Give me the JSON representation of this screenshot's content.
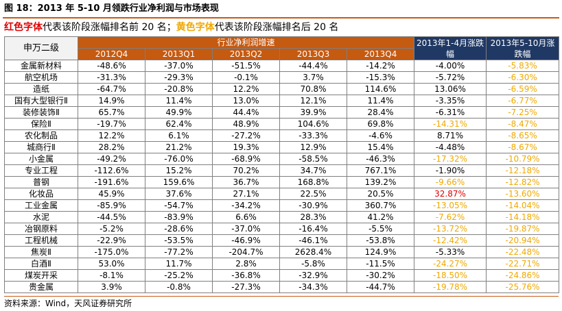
{
  "title": "图 18：2013 年 5-10 月领跌行业净利润与市场表现",
  "legend": {
    "red_label": "红色字体",
    "red_text": "代表该阶段涨幅排名前 20 名；",
    "yellow_label": "黄色字体",
    "yellow_text": "代表该阶段涨幅排名后 20 名"
  },
  "colors": {
    "accent": "#C55A11",
    "header_navy": "#1F3864",
    "red": "#E00000",
    "yellow": "#F0A800"
  },
  "table": {
    "sw_header": "申万二级",
    "growth_header": "行业净利润增速",
    "quarters": [
      "2012Q4",
      "2013Q1",
      "2013Q2",
      "2013Q3",
      "2013Q4"
    ],
    "change_jan_apr": "2013年1-4月涨跌幅",
    "change_may_oct": "2013年5-10月涨跌幅",
    "rows": [
      {
        "name": "金属新材料",
        "q": [
          "-48.6%",
          "-37.0%",
          "-51.5%",
          "-44.4%",
          "-14.2%"
        ],
        "a": "-4.00%",
        "a_color": "",
        "b": "-5.83%",
        "b_color": "yellow"
      },
      {
        "name": "航空机场",
        "q": [
          "-31.3%",
          "-29.3%",
          "-0.1%",
          "3.7%",
          "-15.3%"
        ],
        "a": "-5.72%",
        "a_color": "",
        "b": "-6.30%",
        "b_color": "yellow"
      },
      {
        "name": "造纸",
        "q": [
          "-64.7%",
          "-20.8%",
          "12.2%",
          "70.8%",
          "114.6%"
        ],
        "a": "13.06%",
        "a_color": "",
        "b": "-6.59%",
        "b_color": "yellow"
      },
      {
        "name": "国有大型银行Ⅱ",
        "q": [
          "14.9%",
          "11.4%",
          "13.0%",
          "12.1%",
          "11.4%"
        ],
        "a": "-3.35%",
        "a_color": "",
        "b": "-6.77%",
        "b_color": "yellow"
      },
      {
        "name": "装修装饰Ⅱ",
        "q": [
          "65.7%",
          "49.9%",
          "44.4%",
          "39.9%",
          "28.4%"
        ],
        "a": "-6.31%",
        "a_color": "",
        "b": "-7.25%",
        "b_color": "yellow"
      },
      {
        "name": "保险Ⅱ",
        "q": [
          "-19.7%",
          "62.4%",
          "48.9%",
          "104.6%",
          "69.8%"
        ],
        "a": "-14.31%",
        "a_color": "yellow",
        "b": "-8.47%",
        "b_color": "yellow"
      },
      {
        "name": "农化制品",
        "q": [
          "12.2%",
          "6.1%",
          "-27.2%",
          "-33.3%",
          "-4.6%"
        ],
        "a": "8.71%",
        "a_color": "",
        "b": "-8.65%",
        "b_color": "yellow"
      },
      {
        "name": "城商行Ⅱ",
        "q": [
          "28.2%",
          "21.2%",
          "19.3%",
          "12.9%",
          "15.4%"
        ],
        "a": "-4.48%",
        "a_color": "",
        "b": "-8.67%",
        "b_color": "yellow"
      },
      {
        "name": "小金属",
        "q": [
          "-49.2%",
          "-76.0%",
          "-68.9%",
          "-58.5%",
          "-46.3%"
        ],
        "a": "-17.32%",
        "a_color": "yellow",
        "b": "-10.79%",
        "b_color": "yellow"
      },
      {
        "name": "专业工程",
        "q": [
          "-112.6%",
          "15.2%",
          "70.2%",
          "34.7%",
          "767.1%"
        ],
        "a": "-1.90%",
        "a_color": "",
        "b": "-12.18%",
        "b_color": "yellow"
      },
      {
        "name": "普钢",
        "q": [
          "-191.6%",
          "159.6%",
          "36.7%",
          "168.8%",
          "139.2%"
        ],
        "a": "-9.66%",
        "a_color": "yellow",
        "b": "-12.82%",
        "b_color": "yellow"
      },
      {
        "name": "化妆品",
        "q": [
          "45.9%",
          "37.6%",
          "27.1%",
          "22.5%",
          "20.5%"
        ],
        "a": "32.87%",
        "a_color": "red",
        "b": "-13.60%",
        "b_color": "yellow"
      },
      {
        "name": "工业金属",
        "q": [
          "-85.9%",
          "-54.7%",
          "-34.2%",
          "-30.9%",
          "360.7%"
        ],
        "a": "-13.05%",
        "a_color": "yellow",
        "b": "-14.04%",
        "b_color": "yellow"
      },
      {
        "name": "水泥",
        "q": [
          "-44.5%",
          "-83.9%",
          "6.6%",
          "28.3%",
          "41.2%"
        ],
        "a": "-7.62%",
        "a_color": "yellow",
        "b": "-14.18%",
        "b_color": "yellow"
      },
      {
        "name": "冶钢原料",
        "q": [
          "-5.2%",
          "-28.6%",
          "-37.0%",
          "-16.4%",
          "-5.5%"
        ],
        "a": "-13.72%",
        "a_color": "yellow",
        "b": "-19.87%",
        "b_color": "yellow"
      },
      {
        "name": "工程机械",
        "q": [
          "-22.9%",
          "-53.5%",
          "-46.9%",
          "-46.1%",
          "-53.8%"
        ],
        "a": "-12.42%",
        "a_color": "yellow",
        "b": "-20.94%",
        "b_color": "yellow"
      },
      {
        "name": "焦炭Ⅱ",
        "q": [
          "-175.0%",
          "-77.2%",
          "-204.7%",
          "2628.4%",
          "124.9%"
        ],
        "a": "-5.33%",
        "a_color": "",
        "b": "-22.48%",
        "b_color": "yellow"
      },
      {
        "name": "白酒Ⅱ",
        "q": [
          "53.0%",
          "11.7%",
          "2.8%",
          "-5.8%",
          "-11.5%"
        ],
        "a": "-24.27%",
        "a_color": "yellow",
        "b": "-22.71%",
        "b_color": "yellow"
      },
      {
        "name": "煤炭开采",
        "q": [
          "-8.1%",
          "-25.2%",
          "-36.8%",
          "-32.9%",
          "-30.2%"
        ],
        "a": "-18.50%",
        "a_color": "yellow",
        "b": "-24.86%",
        "b_color": "yellow"
      },
      {
        "name": "贵金属",
        "q": [
          "3.9%",
          "-0.8%",
          "-27.3%",
          "-34.3%",
          "-44.7%"
        ],
        "a": "-19.78%",
        "a_color": "yellow",
        "b": "-25.76%",
        "b_color": "yellow"
      }
    ]
  },
  "source": "资料来源：Wind，天风证券研究所"
}
